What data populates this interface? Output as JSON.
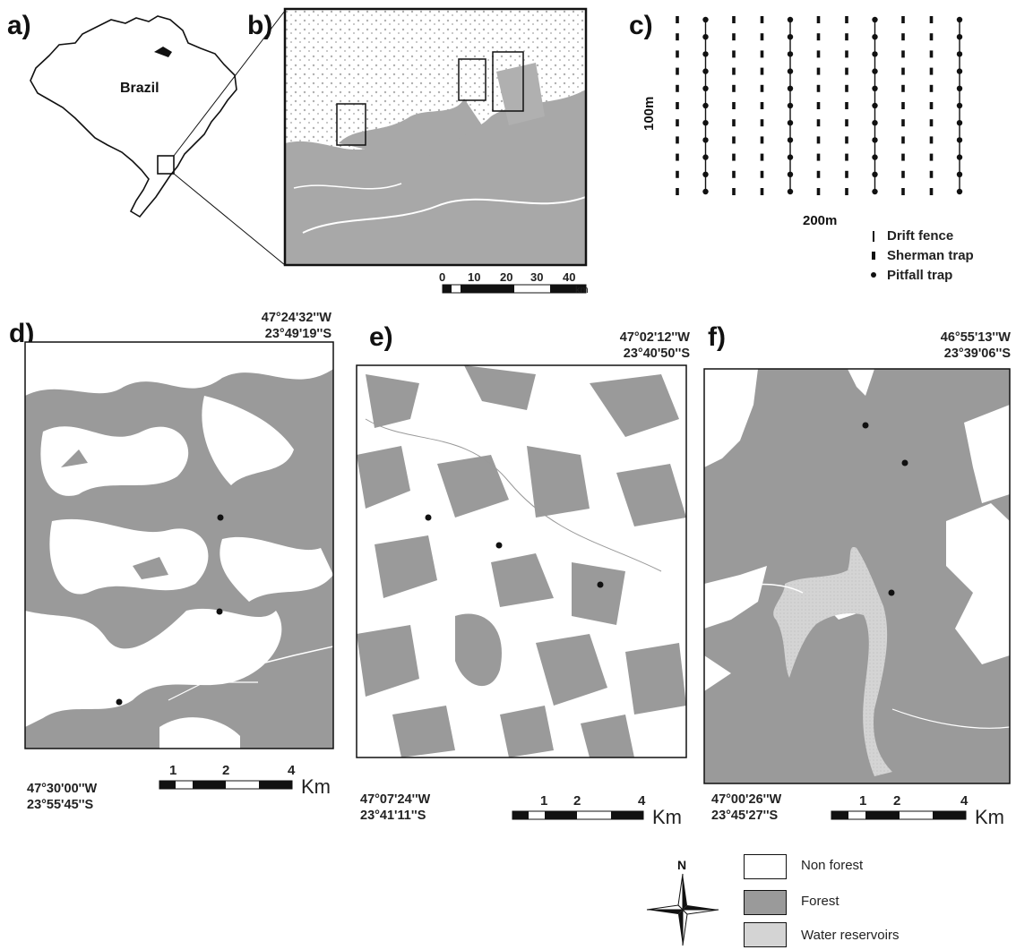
{
  "panels": {
    "a": {
      "letter": "a)",
      "country_label": "Brazil"
    },
    "b": {
      "letter": "b)",
      "scale_ticks": [
        "0",
        "10",
        "20",
        "30",
        "40"
      ],
      "scale_unit": "km"
    },
    "c": {
      "letter": "c)",
      "height_label": "100m",
      "width_label": "200m",
      "legend": [
        "Drift fence",
        "Sherman trap",
        "Pitfall trap"
      ]
    },
    "d": {
      "letter": "d)",
      "ne_coord": [
        "47°24'32''W",
        "23°49'19''S"
      ],
      "sw_coord": [
        "47°30'00''W",
        "23°55'45''S"
      ],
      "scale_ticks": [
        "1",
        "2",
        "4"
      ],
      "scale_unit": "Km"
    },
    "e": {
      "letter": "e)",
      "ne_coord": [
        "47°02'12''W",
        "23°40'50''S"
      ],
      "sw_coord": [
        "47°07'24''W",
        "23°41'11''S"
      ],
      "scale_ticks": [
        "1",
        "2",
        "4"
      ],
      "scale_unit": "Km"
    },
    "f": {
      "letter": "f)",
      "ne_coord": [
        "46°55'13''W",
        "23°39'06''S"
      ],
      "sw_coord": [
        "47°00'26''W",
        "23°45'27''S"
      ],
      "scale_ticks": [
        "1",
        "2",
        "4"
      ],
      "scale_unit": "Km"
    }
  },
  "north_arrow": {
    "label": "N"
  },
  "legend": {
    "items": [
      {
        "label": "Non forest",
        "color": "#ffffff"
      },
      {
        "label": "Forest",
        "color": "#9a9a9a"
      },
      {
        "label": "Water reservoirs",
        "color": "#d4d4d4"
      }
    ]
  },
  "colors": {
    "forest": "#9a9a9a",
    "water": "#d4d4d4",
    "line": "#111111"
  }
}
